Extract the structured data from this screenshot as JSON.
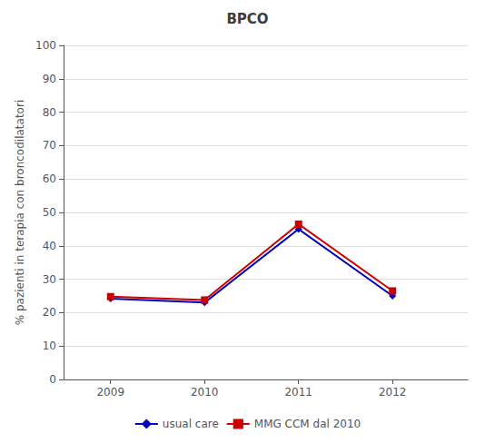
{
  "chart_data": {
    "type": "line",
    "title": "BPCO",
    "ylabel": "% pazienti in terapia con broncodilatatori",
    "x": [
      2009,
      2010,
      2011,
      2012
    ],
    "series": [
      {
        "name": "usual care",
        "color": "#0000BB",
        "marker": "diamond",
        "values": [
          24.2,
          23.0,
          45.0,
          25.0
        ]
      },
      {
        "name": "MMG CCM dal 2010",
        "color": "#CC0000",
        "marker": "square",
        "values": [
          24.8,
          23.8,
          46.5,
          26.5
        ]
      }
    ],
    "xlim": [
      2008.5,
      2012.8
    ],
    "xticks": [
      2009,
      2010,
      2011,
      2012
    ],
    "ylim": [
      0,
      100
    ],
    "yticks": [
      0,
      10,
      20,
      30,
      40,
      50,
      60,
      70,
      80,
      90,
      100
    ],
    "grid": true,
    "legend": "bottom"
  }
}
